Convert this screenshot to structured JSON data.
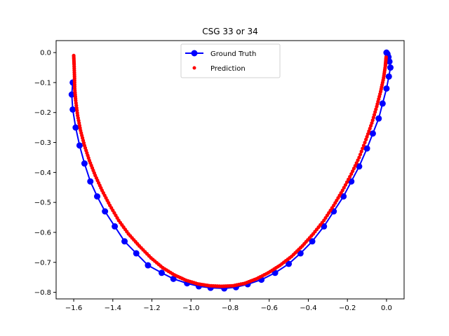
{
  "chart_data": {
    "type": "scatter",
    "title": "CSG 33 or 34",
    "xlabel": "",
    "ylabel": "",
    "xlim": [
      -1.69,
      0.09
    ],
    "ylim": [
      -0.822,
      0.04
    ],
    "xticks": [
      -1.6,
      -1.4,
      -1.2,
      -1.0,
      -0.8,
      -0.6,
      -0.4,
      -0.2,
      0.0
    ],
    "xtick_labels": [
      "−1.6",
      "−1.4",
      "−1.2",
      "−1.0",
      "−0.8",
      "−0.6",
      "−0.4",
      "−0.2",
      "0.0"
    ],
    "yticks": [
      0.0,
      -0.1,
      -0.2,
      -0.3,
      -0.4,
      -0.5,
      -0.6,
      -0.7,
      -0.8
    ],
    "ytick_labels": [
      "0.0",
      "−0.1",
      "−0.2",
      "−0.3",
      "−0.4",
      "−0.5",
      "−0.6",
      "−0.7",
      "−0.8"
    ],
    "grid": false,
    "legend": {
      "placement": "top-center"
    },
    "series": [
      {
        "name": "Ground Truth",
        "style": "line-marker",
        "color": "#0000ff",
        "x": [
          -1.605,
          -1.61,
          -1.605,
          -1.59,
          -1.57,
          -1.545,
          -1.515,
          -1.48,
          -1.44,
          -1.39,
          -1.34,
          -1.28,
          -1.22,
          -1.15,
          -1.09,
          -1.02,
          -0.96,
          -0.9,
          -0.83,
          -0.77,
          -0.71,
          -0.64,
          -0.57,
          -0.5,
          -0.44,
          -0.38,
          -0.32,
          -0.27,
          -0.22,
          -0.18,
          -0.14,
          -0.1,
          -0.07,
          -0.04,
          -0.02,
          0.0,
          0.012,
          0.02,
          0.015,
          0.01,
          0.005,
          0.0
        ],
        "y": [
          -0.1,
          -0.14,
          -0.19,
          -0.25,
          -0.31,
          -0.37,
          -0.43,
          -0.48,
          -0.53,
          -0.58,
          -0.63,
          -0.67,
          -0.71,
          -0.735,
          -0.755,
          -0.77,
          -0.78,
          -0.785,
          -0.787,
          -0.783,
          -0.773,
          -0.758,
          -0.735,
          -0.705,
          -0.67,
          -0.63,
          -0.58,
          -0.53,
          -0.48,
          -0.43,
          -0.38,
          -0.32,
          -0.27,
          -0.22,
          -0.17,
          -0.12,
          -0.08,
          -0.05,
          -0.03,
          -0.015,
          -0.005,
          0.0
        ]
      },
      {
        "name": "Prediction",
        "style": "marker",
        "color": "#ff0000",
        "x": [
          -1.6,
          -1.598,
          -1.596,
          -1.595,
          -1.59,
          -1.58,
          -1.565,
          -1.545,
          -1.52,
          -1.49,
          -1.455,
          -1.415,
          -1.37,
          -1.32,
          -1.265,
          -1.205,
          -1.145,
          -1.085,
          -1.025,
          -0.965,
          -0.905,
          -0.845,
          -0.785,
          -0.725,
          -0.665,
          -0.605,
          -0.545,
          -0.485,
          -0.43,
          -0.375,
          -0.32,
          -0.27,
          -0.225,
          -0.18,
          -0.14,
          -0.105,
          -0.075,
          -0.05,
          -0.03,
          -0.015,
          -0.006,
          -0.002
        ],
        "y": [
          -0.01,
          -0.04,
          -0.08,
          -0.12,
          -0.16,
          -0.21,
          -0.26,
          -0.31,
          -0.36,
          -0.41,
          -0.46,
          -0.51,
          -0.56,
          -0.605,
          -0.645,
          -0.685,
          -0.718,
          -0.742,
          -0.76,
          -0.772,
          -0.778,
          -0.78,
          -0.778,
          -0.77,
          -0.755,
          -0.735,
          -0.71,
          -0.68,
          -0.645,
          -0.605,
          -0.56,
          -0.51,
          -0.46,
          -0.405,
          -0.35,
          -0.29,
          -0.235,
          -0.18,
          -0.13,
          -0.085,
          -0.045,
          -0.015
        ]
      }
    ]
  }
}
